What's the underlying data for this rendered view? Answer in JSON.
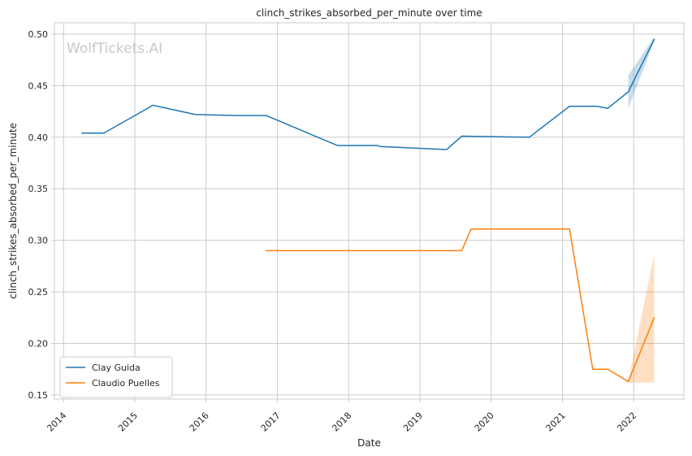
{
  "chart_data": {
    "type": "line",
    "title": "clinch_strikes_absorbed_per_minute over time",
    "xlabel": "Date",
    "ylabel": "clinch_strikes_absorbed_per_minute",
    "watermark": "WolfTickets.AI",
    "xlim": [
      "2013-11-15",
      "2022-09-15"
    ],
    "ylim": [
      0.146,
      0.511
    ],
    "x_ticks": [
      {
        "date": "2014-01-01",
        "label": "2014"
      },
      {
        "date": "2015-01-01",
        "label": "2015"
      },
      {
        "date": "2016-01-01",
        "label": "2016"
      },
      {
        "date": "2017-01-01",
        "label": "2017"
      },
      {
        "date": "2018-01-01",
        "label": "2018"
      },
      {
        "date": "2019-01-01",
        "label": "2019"
      },
      {
        "date": "2020-01-01",
        "label": "2020"
      },
      {
        "date": "2021-01-01",
        "label": "2021"
      },
      {
        "date": "2022-01-01",
        "label": "2022"
      }
    ],
    "y_ticks": [
      {
        "value": 0.15,
        "label": "0.15"
      },
      {
        "value": 0.2,
        "label": "0.20"
      },
      {
        "value": 0.25,
        "label": "0.25"
      },
      {
        "value": 0.3,
        "label": "0.30"
      },
      {
        "value": 0.35,
        "label": "0.35"
      },
      {
        "value": 0.4,
        "label": "0.40"
      },
      {
        "value": 0.45,
        "label": "0.45"
      },
      {
        "value": 0.5,
        "label": "0.50"
      }
    ],
    "grid": true,
    "legend_position": "lower-left",
    "series": [
      {
        "name": "Clay Guida",
        "color": "#1f77b4",
        "points": [
          {
            "x": "2014-04-05",
            "y": 0.404
          },
          {
            "x": "2014-07-26",
            "y": 0.404
          },
          {
            "x": "2015-04-04",
            "y": 0.431
          },
          {
            "x": "2015-11-07",
            "y": 0.422
          },
          {
            "x": "2016-06-04",
            "y": 0.421
          },
          {
            "x": "2016-11-05",
            "y": 0.421
          },
          {
            "x": "2017-11-04",
            "y": 0.392
          },
          {
            "x": "2018-06-01",
            "y": 0.392
          },
          {
            "x": "2018-06-09",
            "y": 0.391
          },
          {
            "x": "2019-05-18",
            "y": 0.388
          },
          {
            "x": "2019-08-03",
            "y": 0.401
          },
          {
            "x": "2020-07-15",
            "y": 0.4
          },
          {
            "x": "2021-02-06",
            "y": 0.43
          },
          {
            "x": "2021-06-26",
            "y": 0.43
          },
          {
            "x": "2021-08-21",
            "y": 0.428
          },
          {
            "x": "2021-12-04",
            "y": 0.444
          },
          {
            "x": "2022-04-16",
            "y": 0.495
          }
        ],
        "band": [
          {
            "x": "2021-12-04",
            "lo": 0.428,
            "hi": 0.46
          },
          {
            "x": "2022-04-16",
            "lo": 0.493,
            "hi": 0.497
          }
        ]
      },
      {
        "name": "Claudio Puelles",
        "color": "#ff7f0e",
        "points": [
          {
            "x": "2016-11-05",
            "y": 0.29
          },
          {
            "x": "2019-08-03",
            "y": 0.29
          },
          {
            "x": "2019-09-21",
            "y": 0.311
          },
          {
            "x": "2021-02-06",
            "y": 0.311
          },
          {
            "x": "2021-06-05",
            "y": 0.175
          },
          {
            "x": "2021-08-21",
            "y": 0.175
          },
          {
            "x": "2021-12-04",
            "y": 0.163
          },
          {
            "x": "2022-04-16",
            "y": 0.225
          }
        ],
        "band": [
          {
            "x": "2021-12-04",
            "lo": 0.162,
            "hi": 0.163
          },
          {
            "x": "2022-04-16",
            "lo": 0.162,
            "hi": 0.287
          }
        ]
      }
    ]
  }
}
